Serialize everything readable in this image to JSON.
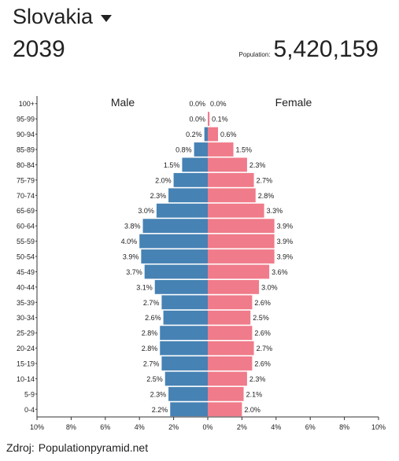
{
  "header": {
    "country": "Slovakia",
    "year": "2039",
    "population_label": "Population:",
    "population_value": "5,420,159"
  },
  "chart_data": {
    "type": "bar",
    "orientation": "horizontal-pyramid",
    "categories": [
      "100+",
      "95-99",
      "90-94",
      "85-89",
      "80-84",
      "75-79",
      "70-74",
      "65-69",
      "60-64",
      "55-59",
      "50-54",
      "45-49",
      "40-44",
      "35-39",
      "30-34",
      "25-29",
      "20-24",
      "15-19",
      "10-14",
      "5-9",
      "0-4"
    ],
    "series": [
      {
        "name": "Male",
        "color": "#4682b4",
        "values": [
          0.0,
          0.0,
          0.2,
          0.8,
          1.5,
          2.0,
          2.3,
          3.0,
          3.8,
          4.0,
          3.9,
          3.7,
          3.1,
          2.7,
          2.6,
          2.8,
          2.8,
          2.7,
          2.5,
          2.3,
          2.2
        ]
      },
      {
        "name": "Female",
        "color": "#f07b8a",
        "values": [
          0.0,
          0.1,
          0.6,
          1.5,
          2.3,
          2.7,
          2.8,
          3.3,
          3.9,
          3.9,
          3.9,
          3.6,
          3.0,
          2.6,
          2.5,
          2.6,
          2.7,
          2.6,
          2.3,
          2.1,
          2.0
        ]
      }
    ],
    "xlim": [
      -10,
      10
    ],
    "x_ticks": [
      "10%",
      "8%",
      "6%",
      "4%",
      "2%",
      "0%",
      "2%",
      "4%",
      "6%",
      "8%",
      "10%"
    ],
    "unit": "%"
  },
  "footer": {
    "source_label": "Zdroj:",
    "source_link": "Populationpyramid.net"
  }
}
